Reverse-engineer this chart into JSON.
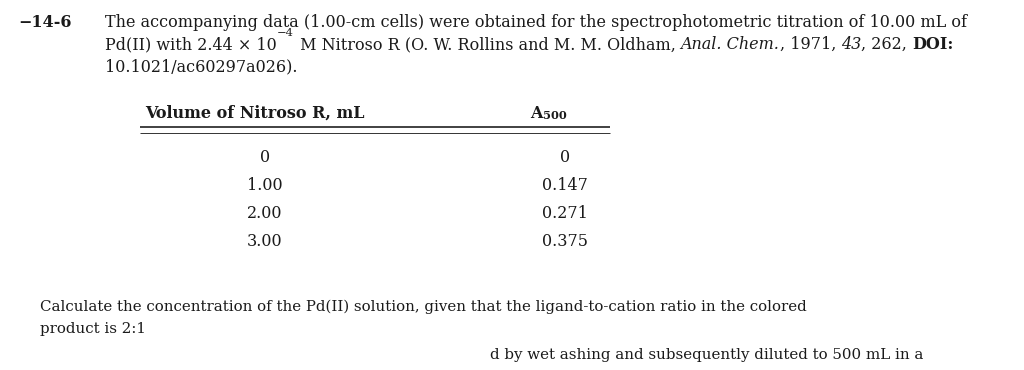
{
  "background_color": "#ffffff",
  "text_color": "#1a1a1a",
  "line_color": "#333333",
  "font_size": 11.5,
  "font_size_footer": 10.8,
  "font_size_small": 8.5,
  "col1_header": "Volume of Nitroso R, mL",
  "col2_header_main": "A",
  "col2_header_sub": "500",
  "table_rows": [
    [
      "0",
      "0"
    ],
    [
      "1.00",
      "0.147"
    ],
    [
      "2.00",
      "0.271"
    ],
    [
      "3.00",
      "0.375"
    ]
  ],
  "footer1": "Calculate the concentration of the Pd(II) solution, given that the ligand-to-cation ratio in the colored",
  "footer2": "product is 2:1",
  "footer3": "                                             d by wet ashing and subsequently diluted to 500 mL in a"
}
